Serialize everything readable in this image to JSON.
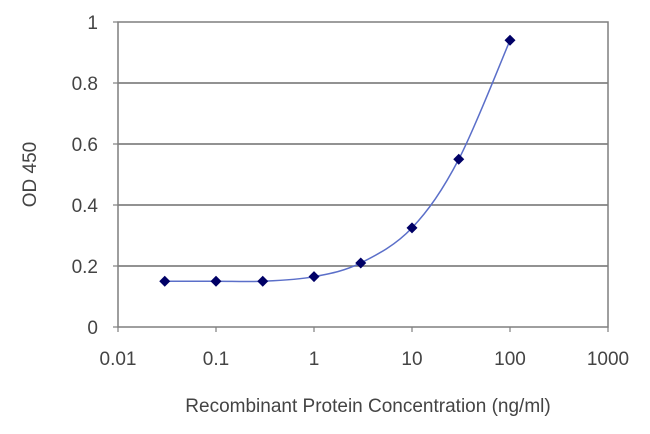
{
  "chart_data": {
    "type": "line",
    "title": "",
    "xlabel": "Recombinant Protein Concentration (ng/ml)",
    "ylabel": "OD 450",
    "xscale": "log",
    "xlim": [
      0.01,
      1000
    ],
    "ylim": [
      0,
      1
    ],
    "xticks": [
      0.01,
      0.1,
      1,
      10,
      100,
      1000
    ],
    "xtick_labels": [
      "0.01",
      "0.1",
      "1",
      "10",
      "100",
      "1000"
    ],
    "yticks": [
      0,
      0.2,
      0.4,
      0.6,
      0.8,
      1
    ],
    "ytick_labels": [
      "0",
      "0.2",
      "0.4",
      "0.6",
      "0.8",
      "1"
    ],
    "grid": "horizontal",
    "legend": "none",
    "series": [
      {
        "x": [
          0.03,
          0.1,
          0.3,
          1,
          3,
          10,
          30,
          100
        ],
        "y": [
          0.15,
          0.15,
          0.15,
          0.165,
          0.21,
          0.325,
          0.55,
          0.94
        ],
        "marker": "diamond",
        "color": "#000066",
        "line_color": "#5b6fc9"
      }
    ]
  }
}
